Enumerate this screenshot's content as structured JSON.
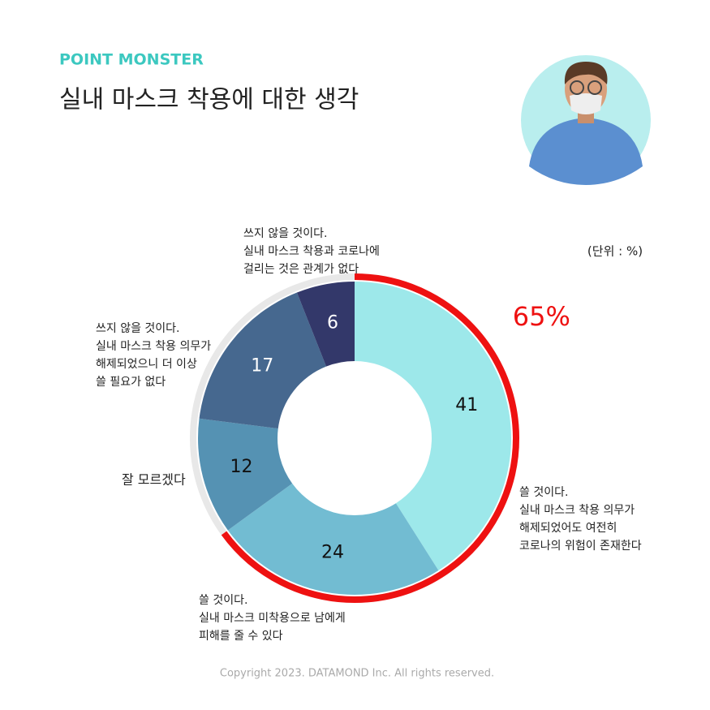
{
  "brand": "POINT MONSTER",
  "chart_data": {
    "type": "donut",
    "title": "실내 마스크 착용에 대한 생각",
    "unit_note": "(단위 : %)",
    "categories": [
      [
        "쓸 것이다.",
        "실내 마스크 착용 의무가",
        "해제되었어도 여전히",
        "코로나의 위험이 존재한다"
      ],
      [
        "쓸 것이다.",
        "실내 마스크 미착용으로 남에게",
        "피해를 줄 수 있다"
      ],
      [
        "잘 모르겠다"
      ],
      [
        "쓰지 않을 것이다.",
        "실내 마스크 착용 의무가",
        "해제되었으니 더 이상",
        "쓸 필요가 없다"
      ],
      [
        "쓰지 않을 것이다.",
        "실내 마스크 착용과 코로나에",
        "걸리는 것은 관계가 없다"
      ]
    ],
    "values": [
      41,
      24,
      12,
      17,
      6
    ],
    "colors": [
      "#9de8ea",
      "#72bcd2",
      "#5592b3",
      "#46688f",
      "#33386a"
    ],
    "highlight": {
      "value": 65,
      "label": "65%",
      "color": "#ee1111"
    }
  },
  "footer": "Copyright 2023. DATAMOND Inc. All rights reserved."
}
